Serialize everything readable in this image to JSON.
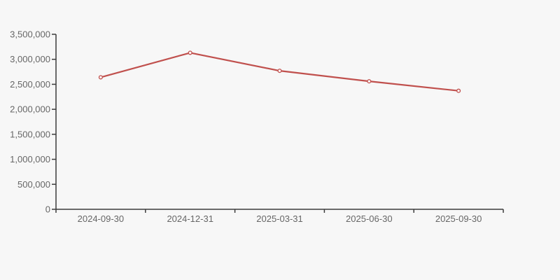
{
  "page": {
    "background_color": "#f7f7f7"
  },
  "chart_data": {
    "type": "line",
    "title": "",
    "categories": [
      "2024-09-30",
      "2024-12-31",
      "2025-03-31",
      "2025-06-30",
      "2025-09-30"
    ],
    "series": [
      {
        "name": "series-1",
        "color": "#c0504d",
        "marker": "circle-open",
        "marker_fill": "#fdf6f5",
        "values": [
          2640000,
          3130000,
          2770000,
          2560000,
          2370000
        ]
      }
    ],
    "xlabel": "",
    "ylabel": "",
    "ylim": [
      0,
      3500000
    ],
    "ytick_step": 500000,
    "ytick_labels": [
      "0",
      "500,000",
      "1,000,000",
      "1,500,000",
      "2,000,000",
      "2,500,000",
      "3,000,000",
      "3,500,000"
    ],
    "grid": false,
    "legend_position": "none",
    "axis_color": "#3c3c3c",
    "tick_label_color": "#666666"
  }
}
